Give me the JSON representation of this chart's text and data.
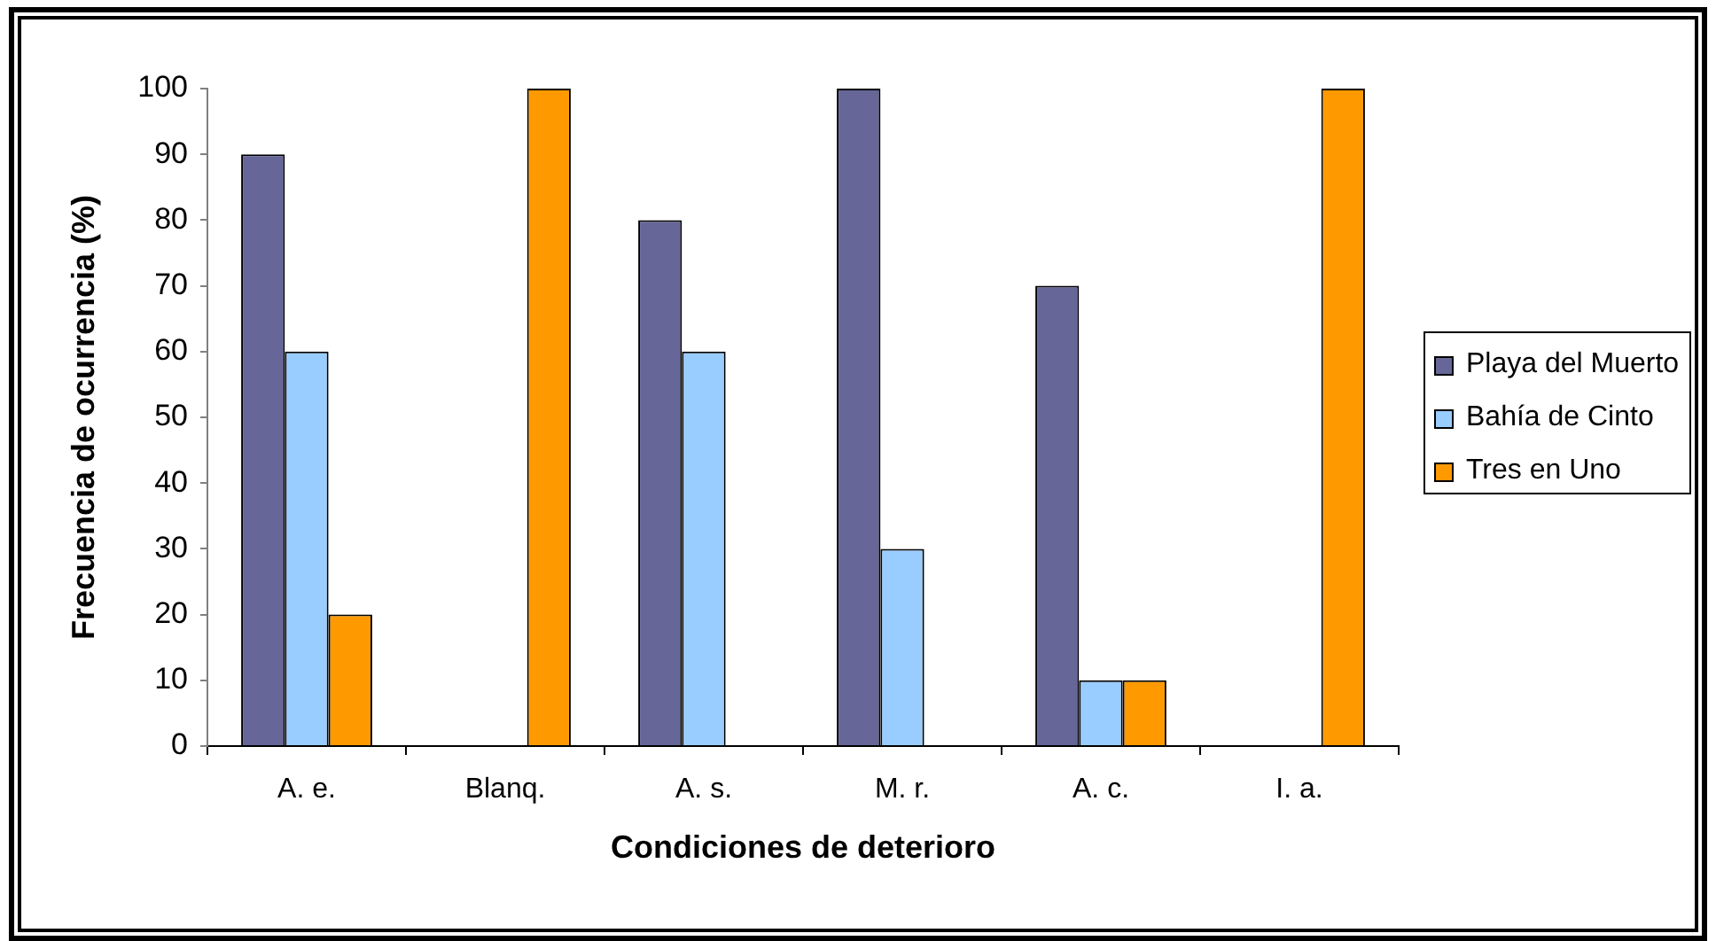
{
  "chart_data": {
    "type": "bar",
    "xlabel": "Condiciones de deterioro",
    "ylabel": "Frecuencia de ocurrencia (%)",
    "categories": [
      "A. e.",
      "Blanq.",
      "A. s.",
      "M. r.",
      "A. c.",
      "I. a."
    ],
    "series": [
      {
        "name": "Playa del Muerto",
        "color": "#666699",
        "values": [
          90,
          0,
          80,
          100,
          70,
          0
        ]
      },
      {
        "name": "Bahía de Cinto",
        "color": "#99ccff",
        "values": [
          60,
          0,
          60,
          30,
          10,
          0
        ]
      },
      {
        "name": "Tres en Uno",
        "color": "#ff9900",
        "values": [
          20,
          100,
          0,
          0,
          10,
          100
        ]
      }
    ],
    "ylim": [
      0,
      100
    ],
    "yticks": [
      0,
      10,
      20,
      30,
      40,
      50,
      60,
      70,
      80,
      90,
      100
    ],
    "grid": false,
    "legend": "right"
  }
}
